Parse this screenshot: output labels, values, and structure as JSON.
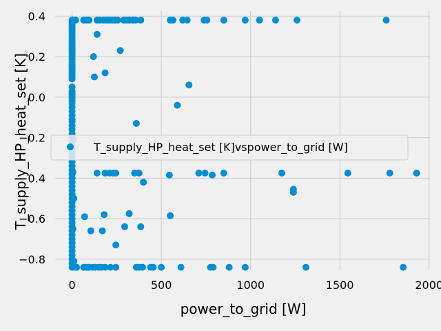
{
  "chart_data": {
    "type": "scatter",
    "title": "",
    "xlabel": "power_to_grid [W]",
    "ylabel": "T_supply_HP_heat_set [K]",
    "xlim": [
      -95,
      2005
    ],
    "ylim": [
      -0.855,
      0.425
    ],
    "xticks": [
      0,
      500,
      1000,
      1500,
      2000
    ],
    "xtick_labels": [
      "0",
      "500",
      "1000",
      "1500",
      "2000"
    ],
    "yticks": [
      -0.8,
      -0.6,
      -0.4,
      -0.2,
      0.0,
      0.2,
      0.4
    ],
    "ytick_labels": [
      "−0.8",
      "−0.6",
      "−0.4",
      "−0.2",
      "0.0",
      "0.2",
      "0.4"
    ],
    "grid": true,
    "legend_position": "center-right",
    "series": [
      {
        "name": "T_supply_HP_heat_set [K]vspower_to_grid [W]",
        "color": "#008fd5",
        "points": [
          [
            0,
            0.38
          ],
          [
            0,
            0.37
          ],
          [
            0,
            0.36
          ],
          [
            0,
            0.35
          ],
          [
            0,
            0.34
          ],
          [
            0,
            0.33
          ],
          [
            0,
            0.32
          ],
          [
            0,
            0.31
          ],
          [
            0,
            0.3
          ],
          [
            0,
            0.29
          ],
          [
            0,
            0.28
          ],
          [
            0,
            0.27
          ],
          [
            0,
            0.26
          ],
          [
            0,
            0.25
          ],
          [
            0,
            0.24
          ],
          [
            0,
            0.23
          ],
          [
            0,
            0.22
          ],
          [
            0,
            0.21
          ],
          [
            0,
            0.2
          ],
          [
            0,
            0.19
          ],
          [
            0,
            0.18
          ],
          [
            0,
            0.17
          ],
          [
            0,
            0.16
          ],
          [
            0,
            0.15
          ],
          [
            0,
            0.14
          ],
          [
            0,
            0.13
          ],
          [
            0,
            0.12
          ],
          [
            0,
            0.11
          ],
          [
            0,
            0.1
          ],
          [
            0,
            0.09
          ],
          [
            0,
            0.05
          ],
          [
            0,
            0.03
          ],
          [
            0,
            0.02
          ],
          [
            0,
            0.01
          ],
          [
            0,
            0.0
          ],
          [
            0,
            -0.01
          ],
          [
            0,
            -0.02
          ],
          [
            0,
            -0.03
          ],
          [
            0,
            -0.05
          ],
          [
            0,
            -0.07
          ],
          [
            0,
            -0.09
          ],
          [
            0,
            -0.11
          ],
          [
            0,
            -0.12
          ],
          [
            0,
            -0.14
          ],
          [
            0,
            -0.16
          ],
          [
            0,
            -0.18
          ],
          [
            0,
            -0.2
          ],
          [
            0,
            -0.22
          ],
          [
            0,
            -0.24
          ],
          [
            0,
            -0.26
          ],
          [
            0,
            -0.28
          ],
          [
            0,
            -0.3
          ],
          [
            0,
            -0.32
          ],
          [
            0,
            -0.34
          ],
          [
            0,
            -0.36
          ],
          [
            0,
            -0.38
          ],
          [
            0,
            -0.4
          ],
          [
            0,
            -0.42
          ],
          [
            0,
            -0.44
          ],
          [
            0,
            -0.46
          ],
          [
            0,
            -0.48
          ],
          [
            0,
            -0.5
          ],
          [
            0,
            -0.52
          ],
          [
            0,
            -0.54
          ],
          [
            0,
            -0.56
          ],
          [
            0,
            -0.58
          ],
          [
            0,
            -0.6
          ],
          [
            0,
            -0.62
          ],
          [
            0,
            -0.64
          ],
          [
            0,
            -0.66
          ],
          [
            0,
            -0.68
          ],
          [
            0,
            -0.7
          ],
          [
            0,
            -0.72
          ],
          [
            0,
            -0.74
          ],
          [
            0,
            -0.76
          ],
          [
            0,
            -0.78
          ],
          [
            0,
            -0.8
          ],
          [
            0,
            -0.82
          ],
          [
            0,
            -0.84
          ],
          [
            5,
            0.38
          ],
          [
            8,
            -0.21
          ],
          [
            5,
            -0.37
          ],
          [
            10,
            -0.5
          ],
          [
            5,
            -0.65
          ],
          [
            10,
            -0.81
          ],
          [
            15,
            -0.84
          ],
          [
            25,
            -0.84
          ],
          [
            10,
            0.38
          ],
          [
            20,
            0.38
          ],
          [
            65,
            0.38
          ],
          [
            80,
            0.38
          ],
          [
            95,
            0.38
          ],
          [
            140,
            0.38
          ],
          [
            155,
            0.38
          ],
          [
            175,
            0.38
          ],
          [
            190,
            0.38
          ],
          [
            200,
            0.38
          ],
          [
            210,
            0.38
          ],
          [
            225,
            0.38
          ],
          [
            240,
            0.38
          ],
          [
            255,
            0.38
          ],
          [
            290,
            0.38
          ],
          [
            305,
            0.38
          ],
          [
            320,
            0.38
          ],
          [
            340,
            0.38
          ],
          [
            355,
            0.38
          ],
          [
            385,
            0.38
          ],
          [
            550,
            0.38
          ],
          [
            565,
            0.38
          ],
          [
            620,
            0.38
          ],
          [
            645,
            0.38
          ],
          [
            740,
            0.38
          ],
          [
            755,
            0.38
          ],
          [
            850,
            0.38
          ],
          [
            970,
            0.38
          ],
          [
            1050,
            0.38
          ],
          [
            1140,
            0.38
          ],
          [
            1260,
            0.38
          ],
          [
            1760,
            0.38
          ],
          [
            140,
            0.31
          ],
          [
            120,
            0.2
          ],
          [
            270,
            0.23
          ],
          [
            185,
            0.12
          ],
          [
            125,
            0.1
          ],
          [
            655,
            0.06
          ],
          [
            590,
            -0.04
          ],
          [
            360,
            -0.13
          ],
          [
            140,
            -0.375
          ],
          [
            185,
            -0.375
          ],
          [
            210,
            -0.375
          ],
          [
            230,
            -0.375
          ],
          [
            245,
            -0.375
          ],
          [
            350,
            -0.375
          ],
          [
            375,
            -0.375
          ],
          [
            400,
            -0.42
          ],
          [
            545,
            -0.385
          ],
          [
            710,
            -0.375
          ],
          [
            745,
            -0.375
          ],
          [
            785,
            -0.385
          ],
          [
            850,
            -0.375
          ],
          [
            1175,
            -0.375
          ],
          [
            1240,
            -0.455
          ],
          [
            1240,
            -0.47
          ],
          [
            1545,
            -0.375
          ],
          [
            1780,
            -0.375
          ],
          [
            1930,
            -0.375
          ],
          [
            70,
            -0.59
          ],
          [
            180,
            -0.58
          ],
          [
            320,
            -0.575
          ],
          [
            550,
            -0.585
          ],
          [
            105,
            -0.66
          ],
          [
            170,
            -0.66
          ],
          [
            295,
            -0.64
          ],
          [
            385,
            -0.64
          ],
          [
            245,
            -0.73
          ],
          [
            65,
            -0.84
          ],
          [
            80,
            -0.84
          ],
          [
            95,
            -0.84
          ],
          [
            115,
            -0.84
          ],
          [
            130,
            -0.84
          ],
          [
            150,
            -0.84
          ],
          [
            165,
            -0.84
          ],
          [
            185,
            -0.84
          ],
          [
            215,
            -0.84
          ],
          [
            245,
            -0.84
          ],
          [
            360,
            -0.84
          ],
          [
            375,
            -0.84
          ],
          [
            395,
            -0.84
          ],
          [
            440,
            -0.84
          ],
          [
            455,
            -0.84
          ],
          [
            500,
            -0.84
          ],
          [
            610,
            -0.84
          ],
          [
            775,
            -0.84
          ],
          [
            790,
            -0.84
          ],
          [
            880,
            -0.84
          ],
          [
            970,
            -0.84
          ],
          [
            1310,
            -0.84
          ],
          [
            1855,
            -0.84
          ]
        ]
      }
    ]
  }
}
